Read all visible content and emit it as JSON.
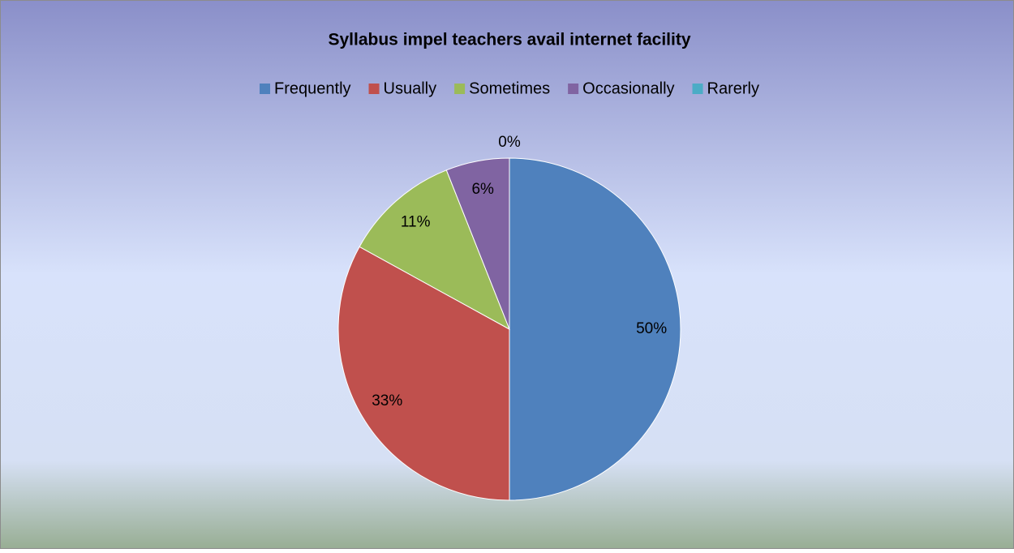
{
  "chart_data": {
    "type": "pie",
    "title": "Syllabus impel teachers avail internet facility",
    "categories": [
      "Frequently",
      "Usually",
      "Sometimes",
      "Occasionally",
      "Rarerly"
    ],
    "values": [
      50,
      33,
      11,
      6,
      0
    ],
    "value_labels": [
      "50%",
      "33%",
      "11%",
      "6%",
      "0%"
    ],
    "colors": [
      "#4f81bd",
      "#c0504d",
      "#9bbb59",
      "#8064a2",
      "#4bacc6"
    ],
    "legend": "top"
  }
}
